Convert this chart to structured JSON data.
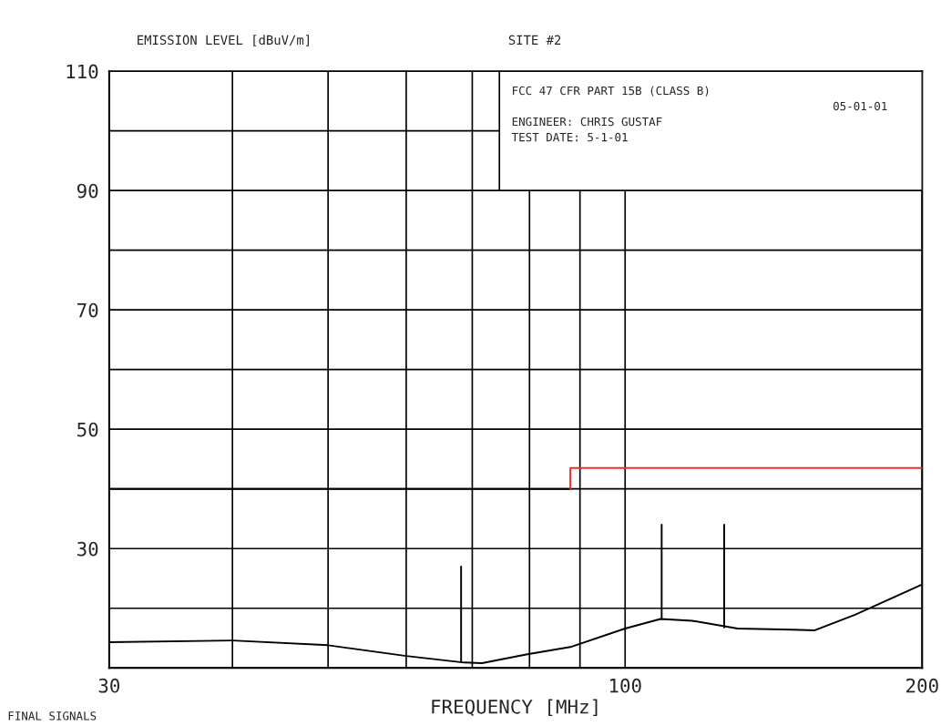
{
  "chart_data": {
    "type": "line",
    "title": "SITE #2",
    "ylabel": "EMISSION LEVEL [dBuV/m]",
    "xlabel": "FREQUENCY [MHz]",
    "annotations": [
      "FCC 47 CFR PART 15B (CLASS B)",
      "05-01-01",
      "ENGINEER: CHRIS GUSTAF",
      "TEST DATE: 5-1-01",
      "FINAL SIGNALS"
    ],
    "log": "x",
    "xlim": [
      30,
      200
    ],
    "xticks": [
      30,
      {
        "value": 40,
        "label": null
      },
      {
        "value": 50,
        "label": null
      },
      {
        "value": 60,
        "label": null
      },
      {
        "value": 70,
        "label": null
      },
      {
        "value": 80,
        "label": null
      },
      {
        "value": 90,
        "label": null
      },
      100,
      200
    ],
    "ylim": [
      10,
      110
    ],
    "yticks": [
      {
        "value": 10,
        "label": null
      },
      {
        "value": 20,
        "label": null
      },
      30,
      {
        "value": 40,
        "label": null
      },
      50,
      {
        "value": 60,
        "label": null
      },
      70,
      {
        "value": 80,
        "label": null
      },
      90,
      {
        "value": 100,
        "label": null
      },
      110
    ],
    "grid": true,
    "marker": "none",
    "line_style": "solid",
    "series": [
      {
        "color": "#000000",
        "x": [
          30,
          40,
          50,
          60,
          68.7,
          71.6,
          79.6,
          88,
          100,
          108.6,
          117,
          130,
          147.6,
          155.7,
          171,
          200
        ],
        "values": [
          14.3,
          14.6,
          13.8,
          12.0,
          10.9,
          10.8,
          12.3,
          13.5,
          16.6,
          18.2,
          17.9,
          16.6,
          16.4,
          16.3,
          18.9,
          24.0
        ]
      },
      {
        "color": "#000000",
        "x": [
          30,
          88
        ],
        "values": [
          40,
          40
        ]
      },
      {
        "color": "#e8312b",
        "x": [
          88,
          88,
          200
        ],
        "values": [
          40,
          43.5,
          43.5
        ]
      },
      {
        "color": "#000000",
        "x": [
          68.2,
          68.2
        ],
        "values": [
          11.0,
          27.0
        ]
      },
      {
        "color": "#000000",
        "x": [
          108.9,
          108.9
        ],
        "values": [
          18.2,
          34.0
        ]
      },
      {
        "color": "#000000",
        "x": [
          126,
          126
        ],
        "values": [
          16.8,
          34.0
        ]
      }
    ]
  }
}
